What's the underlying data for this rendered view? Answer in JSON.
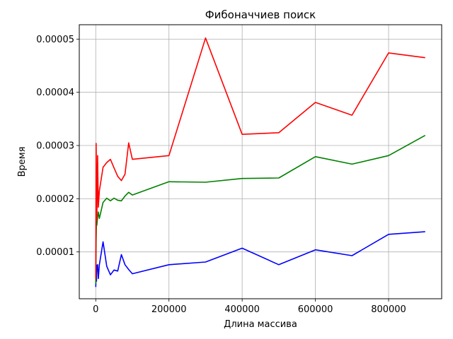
{
  "chart_data": {
    "type": "line",
    "title": "Фибоначчиев поиск",
    "xlabel": "Длина массива",
    "ylabel": "Время",
    "xlim": [
      -45000,
      945000
    ],
    "ylim": [
      1.2e-06,
      5.27e-05
    ],
    "grid": true,
    "x_ticks": [
      0,
      200000,
      400000,
      600000,
      800000
    ],
    "x_tick_labels": [
      "0",
      "200000",
      "400000",
      "600000",
      "800000"
    ],
    "y_ticks": [
      1e-05,
      2e-05,
      3e-05,
      4e-05,
      5e-05
    ],
    "y_tick_labels": [
      "0.00001",
      "0.00002",
      "0.00003",
      "0.00004",
      "0.00005"
    ],
    "series": [
      {
        "color": "#0000ff",
        "x": [
          100,
          1000,
          2000,
          3000,
          5000,
          7000,
          10000,
          20000,
          30000,
          40000,
          50000,
          60000,
          70000,
          80000,
          90000,
          100000,
          200000,
          300000,
          400000,
          500000,
          600000,
          700000,
          800000,
          900000
        ],
        "y": [
          3.4e-06,
          6.2e-06,
          4.5e-06,
          7.5e-06,
          7.6e-06,
          5e-06,
          7.6e-06,
          1.19e-05,
          7.3e-06,
          5.7e-06,
          6.6e-06,
          6.4e-06,
          9.5e-06,
          7.6e-06,
          6.7e-06,
          5.9e-06,
          7.6e-06,
          8.1e-06,
          1.07e-05,
          7.6e-06,
          1.04e-05,
          9.3e-06,
          1.33e-05,
          1.38e-05
        ]
      },
      {
        "color": "#008000",
        "x": [
          100,
          1000,
          2000,
          3000,
          5000,
          7000,
          10000,
          20000,
          30000,
          40000,
          50000,
          60000,
          70000,
          80000,
          90000,
          100000,
          200000,
          300000,
          400000,
          500000,
          600000,
          700000,
          800000,
          900000
        ],
        "y": [
          4e-06,
          1.2e-05,
          1.58e-05,
          1.5e-05,
          1.65e-05,
          1.75e-05,
          1.63e-05,
          1.93e-05,
          2.01e-05,
          1.96e-05,
          2.01e-05,
          1.97e-05,
          1.96e-05,
          2.05e-05,
          2.12e-05,
          2.07e-05,
          2.32e-05,
          2.31e-05,
          2.38e-05,
          2.39e-05,
          2.79e-05,
          2.65e-05,
          2.81e-05,
          3.19e-05
        ]
      },
      {
        "color": "#ff0000",
        "x": [
          100,
          1000,
          2000,
          3000,
          5000,
          7000,
          10000,
          20000,
          30000,
          40000,
          50000,
          60000,
          70000,
          80000,
          90000,
          100000,
          200000,
          300000,
          400000,
          500000,
          600000,
          700000,
          800000,
          900000
        ],
        "y": [
          4.9e-06,
          3.04e-05,
          2.23e-05,
          1.6e-05,
          2.81e-05,
          1.84e-05,
          2.15e-05,
          2.59e-05,
          2.68e-05,
          2.74e-05,
          2.58e-05,
          2.42e-05,
          2.34e-05,
          2.46e-05,
          3.05e-05,
          2.74e-05,
          2.81e-05,
          5.02e-05,
          3.21e-05,
          3.24e-05,
          3.81e-05,
          3.57e-05,
          4.74e-05,
          4.65e-05
        ]
      }
    ]
  }
}
